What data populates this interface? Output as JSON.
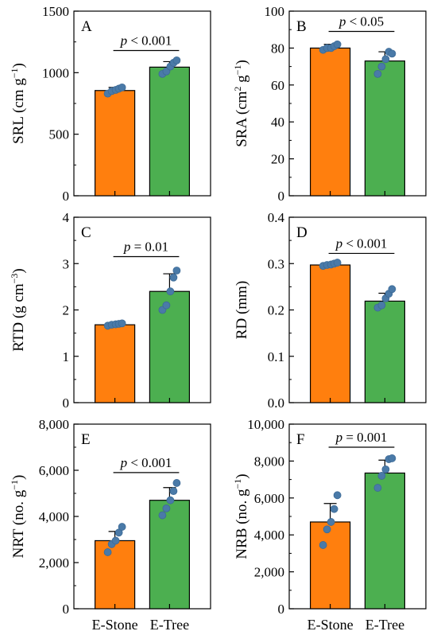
{
  "chart_data": [
    {
      "type": "bar",
      "panel": "A",
      "ylabel": "SRL (cm g",
      "ylabel_sup": "−1",
      "ylabel_end": ")",
      "yticks": [
        "0",
        "500",
        "1000",
        "1500"
      ],
      "ylim": [
        0,
        1500
      ],
      "categories": [
        "E-Stone",
        "E-Tree"
      ],
      "values": [
        855,
        1045
      ],
      "errors": [
        25,
        45
      ],
      "points": [
        [
          830,
          850,
          860,
          870,
          880
        ],
        [
          990,
          1010,
          1050,
          1080,
          1100
        ]
      ],
      "sig": {
        "p": "p",
        "rest": " < 0.001",
        "y": 1180
      }
    },
    {
      "type": "bar",
      "panel": "B",
      "ylabel": "SRA (cm",
      "ylabel_sup": "2",
      "ylabel_mid": " g",
      "ylabel_sup2": "−1",
      "ylabel_end": ")",
      "yticks": [
        "0",
        "20",
        "40",
        "60",
        "80",
        "100"
      ],
      "ylim": [
        0,
        100
      ],
      "categories": [
        "E-Stone",
        "E-Tree"
      ],
      "values": [
        80,
        73
      ],
      "errors": [
        2,
        5
      ],
      "points": [
        [
          79,
          80,
          80,
          81,
          82
        ],
        [
          66,
          70,
          74,
          78,
          77
        ]
      ],
      "sig": {
        "p": "p",
        "rest": " < 0.05",
        "y": 89
      }
    },
    {
      "type": "bar",
      "panel": "C",
      "ylabel": "RTD (g cm",
      "ylabel_sup": "−3",
      "ylabel_end": ")",
      "yticks": [
        "0",
        "1",
        "2",
        "3",
        "4"
      ],
      "ylim": [
        0,
        4
      ],
      "categories": [
        "E-Stone",
        "E-Tree"
      ],
      "values": [
        1.68,
        2.4
      ],
      "errors": [
        0.04,
        0.38
      ],
      "points": [
        [
          1.66,
          1.68,
          1.69,
          1.7,
          1.71
        ],
        [
          2.0,
          2.1,
          2.4,
          2.7,
          2.85
        ]
      ],
      "sig": {
        "p": "p",
        "rest": " = 0.01",
        "y": 3.15
      }
    },
    {
      "type": "bar",
      "panel": "D",
      "ylabel": "RD (mm)",
      "yticks": [
        "0.0",
        "0.1",
        "0.2",
        "0.3",
        "0.4"
      ],
      "ylim": [
        0,
        0.4
      ],
      "categories": [
        "E-Stone",
        "E-Tree"
      ],
      "values": [
        0.297,
        0.219
      ],
      "errors": [
        0.005,
        0.017
      ],
      "points": [
        [
          0.295,
          0.297,
          0.298,
          0.3,
          0.302
        ],
        [
          0.205,
          0.21,
          0.225,
          0.235,
          0.245
        ]
      ],
      "sig": {
        "p": "p",
        "rest": " < 0.001",
        "y": 0.322
      }
    },
    {
      "type": "bar",
      "panel": "E",
      "ylabel": "NRT (no. g",
      "ylabel_sup": "−1",
      "ylabel_end": ")",
      "yticks": [
        "0",
        "2,000",
        "4,000",
        "6,000",
        "8,000"
      ],
      "ylim": [
        0,
        8000
      ],
      "categories": [
        "E-Stone",
        "E-Tree"
      ],
      "values": [
        2950,
        4700
      ],
      "errors": [
        400,
        550
      ],
      "points": [
        [
          2450,
          2800,
          2950,
          3300,
          3550
        ],
        [
          4050,
          4350,
          4700,
          5100,
          5450
        ]
      ],
      "sig": {
        "p": "p",
        "rest": " < 0.001",
        "y": 5900
      }
    },
    {
      "type": "bar",
      "panel": "F",
      "ylabel": "NRB (no. g",
      "ylabel_sup": "−1",
      "ylabel_end": ")",
      "yticks": [
        "0",
        "2,000",
        "4,000",
        "6,000",
        "8,000",
        "10,000"
      ],
      "ylim": [
        0,
        10000
      ],
      "categories": [
        "E-Stone",
        "E-Tree"
      ],
      "values": [
        4700,
        7350
      ],
      "errors": [
        1000,
        700
      ],
      "points": [
        [
          3450,
          4300,
          4700,
          5400,
          6150
        ],
        [
          6550,
          7200,
          7550,
          8100,
          8150
        ]
      ],
      "sig": {
        "p": "p",
        "rest": " = 0.001",
        "y": 8750
      }
    }
  ],
  "colors": {
    "bar1": "#ff7f0e",
    "bar2": "#4caf50",
    "point": "#4a7aa8",
    "axis": "#000000"
  }
}
